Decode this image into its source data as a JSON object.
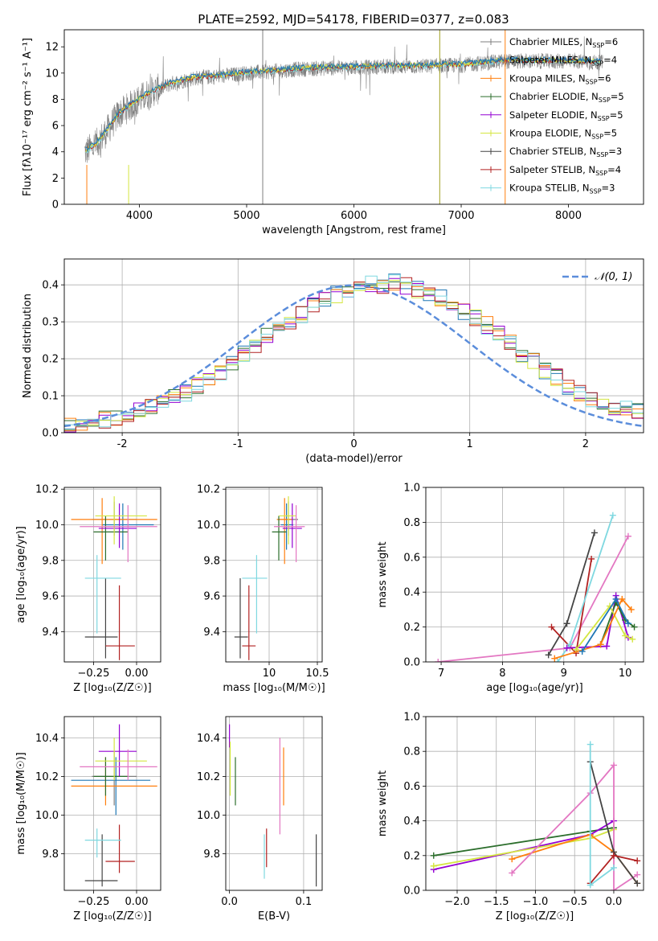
{
  "figure_title": "PLATE=2592, MJD=54178, FIBERID=0377, z=0.083",
  "colors": {
    "chabrier_miles": "#7f7f7f",
    "salpeter_miles": "#1f77b4",
    "kroupa_miles": "#ff7f0e",
    "chabrier_elodie": "#2c6e2c",
    "salpeter_elodie": "#9400d3",
    "kroupa_elodie": "#d4e640",
    "chabrier_stelib": "#444444",
    "salpeter_stelib": "#b22222",
    "kroupa_stelib": "#7fd8e0",
    "pink": "#e377c2"
  },
  "chart_data": [
    {
      "id": "spectrum",
      "type": "line",
      "title": "PLATE=2592, MJD=54178, FIBERID=0377, z=0.083",
      "xlabel": "wavelength [Angstrom, rest frame]",
      "ylabel": "Flux [fλ10⁻¹⁷ erg cm⁻² s⁻¹ A⁻¹]",
      "xlim": [
        3300,
        8700
      ],
      "ylim": [
        0,
        13.3
      ],
      "xticks": [
        4000,
        5000,
        6000,
        7000,
        8000
      ],
      "yticks": [
        0,
        2,
        4,
        6,
        8,
        10,
        12
      ],
      "legend_position": "right",
      "legend": [
        "Chabrier MILES, N_SSP=6",
        "Salpeter MILES, N_SSP=4",
        "Kroupa MILES, N_SSP=6",
        "Chabrier ELODIE, N_SSP=5",
        "Salpeter ELODIE, N_SSP=5",
        "Kroupa ELODIE, N_SSP=5",
        "Chabrier STELIB, N_SSP=3",
        "Salpeter STELIB, N_SSP=4",
        "Kroupa STELIB, N_SSP=3"
      ],
      "continuum": {
        "x": [
          3500,
          3600,
          3700,
          3800,
          3900,
          4000,
          4100,
          4300,
          4500,
          4800,
          5000,
          5200,
          5500,
          5800,
          6000,
          6300,
          6600,
          7000,
          7400,
          8000,
          8300
        ],
        "y": [
          4.0,
          4.6,
          5.6,
          6.8,
          7.4,
          8.0,
          8.5,
          9.2,
          9.6,
          9.8,
          10.0,
          10.1,
          10.3,
          10.4,
          10.4,
          10.5,
          10.5,
          10.6,
          10.9,
          10.9,
          10.8
        ]
      }
    },
    {
      "id": "residuals",
      "type": "histogram",
      "xlabel": "(data-model)/error",
      "ylabel": "Normed distribution",
      "xlim": [
        -2.5,
        2.5
      ],
      "ylim": [
        0,
        0.47
      ],
      "xticks": [
        -2,
        -1,
        0,
        1,
        2
      ],
      "yticks": [
        0.0,
        0.1,
        0.2,
        0.3,
        0.4
      ],
      "legend": [
        "𝒩(0, 1)"
      ],
      "bin_width": 0.1,
      "hist_values": [
        0.025,
        0.028,
        0.03,
        0.036,
        0.04,
        0.048,
        0.06,
        0.07,
        0.085,
        0.1,
        0.11,
        0.128,
        0.15,
        0.165,
        0.19,
        0.21,
        0.23,
        0.26,
        0.28,
        0.3,
        0.32,
        0.34,
        0.355,
        0.375,
        0.39,
        0.395,
        0.405,
        0.4,
        0.405,
        0.395,
        0.39,
        0.38,
        0.365,
        0.35,
        0.33,
        0.31,
        0.29,
        0.265,
        0.24,
        0.215,
        0.195,
        0.17,
        0.15,
        0.125,
        0.11,
        0.095,
        0.08,
        0.07,
        0.065,
        0.06
      ]
    },
    {
      "id": "age-z",
      "type": "errorbar",
      "xlabel": "Z [log₁₀(Z/Z☉)]",
      "ylabel": "age  [log₁₀(age/yr)]",
      "xlim": [
        -0.42,
        0.14
      ],
      "ylim": [
        9.23,
        10.21
      ],
      "xticks": [
        -0.25,
        0.0
      ],
      "xticklabels": [
        "−0.25",
        "0.00"
      ],
      "yticks": [
        9.4,
        9.6,
        9.8,
        10.0,
        10.2
      ],
      "points": [
        {
          "c": "chabrier_miles",
          "x": -0.13,
          "y": 10.03,
          "xl": -0.26,
          "xh": 0.0,
          "yl": 9.94,
          "yh": 10.13
        },
        {
          "c": "salpeter_miles",
          "x": -0.08,
          "y": 10.0,
          "xl": -0.2,
          "xh": 0.1,
          "yl": 9.86,
          "yh": 10.12
        },
        {
          "c": "kroupa_miles",
          "x": -0.2,
          "y": 10.03,
          "xl": -0.38,
          "xh": 0.12,
          "yl": 9.78,
          "yh": 10.15
        },
        {
          "c": "chabrier_elodie",
          "x": -0.18,
          "y": 9.96,
          "xl": -0.25,
          "xh": -0.05,
          "yl": 9.8,
          "yh": 10.05
        },
        {
          "c": "salpeter_elodie",
          "x": -0.1,
          "y": 9.98,
          "xl": -0.22,
          "xh": 0.0,
          "yl": 9.87,
          "yh": 10.12
        },
        {
          "c": "kroupa_elodie",
          "x": -0.13,
          "y": 10.05,
          "xl": -0.24,
          "xh": 0.06,
          "yl": 9.89,
          "yh": 10.16
        },
        {
          "c": "chabrier_stelib",
          "x": -0.18,
          "y": 9.37,
          "xl": -0.3,
          "xh": -0.11,
          "yl": 9.25,
          "yh": 9.7
        },
        {
          "c": "salpeter_stelib",
          "x": -0.1,
          "y": 9.32,
          "xl": -0.18,
          "xh": -0.01,
          "yl": 9.24,
          "yh": 9.66
        },
        {
          "c": "kroupa_stelib",
          "x": -0.23,
          "y": 9.7,
          "xl": -0.3,
          "xh": -0.09,
          "yl": 9.39,
          "yh": 9.83
        },
        {
          "c": "pink",
          "x": -0.05,
          "y": 9.99,
          "xl": -0.33,
          "xh": 0.12,
          "yl": 9.79,
          "yh": 10.11
        }
      ]
    },
    {
      "id": "age-mass",
      "type": "errorbar",
      "xlabel": "mass [log₁₀(M/M☉)]",
      "ylabel": "",
      "xlim": [
        9.55,
        10.55
      ],
      "ylim": [
        9.23,
        10.21
      ],
      "xticks": [
        10.0,
        10.5
      ],
      "yticks": [
        9.4,
        9.6,
        9.8,
        10.0,
        10.2
      ],
      "points": [
        {
          "c": "chabrier_miles",
          "x": 10.2,
          "y": 10.03,
          "xl": 10.1,
          "xh": 10.3,
          "yl": 9.94,
          "yh": 10.13
        },
        {
          "c": "salpeter_miles",
          "x": 10.18,
          "y": 10.0,
          "xl": 10.12,
          "xh": 10.25,
          "yl": 9.86,
          "yh": 10.12
        },
        {
          "c": "kroupa_miles",
          "x": 10.16,
          "y": 10.03,
          "xl": 10.08,
          "xh": 10.24,
          "yl": 9.78,
          "yh": 10.15
        },
        {
          "c": "chabrier_elodie",
          "x": 10.1,
          "y": 9.96,
          "xl": 10.03,
          "xh": 10.18,
          "yl": 9.8,
          "yh": 10.05
        },
        {
          "c": "salpeter_elodie",
          "x": 10.24,
          "y": 9.98,
          "xl": 10.14,
          "xh": 10.34,
          "yl": 9.87,
          "yh": 10.12
        },
        {
          "c": "kroupa_elodie",
          "x": 10.2,
          "y": 10.05,
          "xl": 10.1,
          "xh": 10.28,
          "yl": 9.89,
          "yh": 10.16
        },
        {
          "c": "chabrier_stelib",
          "x": 9.7,
          "y": 9.37,
          "xl": 9.64,
          "xh": 9.78,
          "yl": 9.25,
          "yh": 9.7
        },
        {
          "c": "salpeter_stelib",
          "x": 9.79,
          "y": 9.32,
          "xl": 9.72,
          "xh": 9.86,
          "yl": 9.24,
          "yh": 9.66
        },
        {
          "c": "kroupa_stelib",
          "x": 9.87,
          "y": 9.7,
          "xl": 9.72,
          "xh": 9.98,
          "yl": 9.39,
          "yh": 9.83
        },
        {
          "c": "pink",
          "x": 10.28,
          "y": 9.99,
          "xl": 10.05,
          "xh": 10.37,
          "yl": 9.79,
          "yh": 10.11
        }
      ]
    },
    {
      "id": "weight-age",
      "type": "line",
      "xlabel": "age  [log₁₀(age/yr)]",
      "ylabel": "mass weight",
      "xlim": [
        6.75,
        10.3
      ],
      "ylim": [
        0,
        1
      ],
      "xticks": [
        7,
        8,
        9,
        10
      ],
      "yticks": [
        0.0,
        0.2,
        0.4,
        0.6,
        0.8,
        1.0
      ],
      "series": [
        {
          "c": "pink",
          "x": [
            6.95,
            9.1,
            10.05
          ],
          "y": [
            0.0,
            0.08,
            0.72
          ]
        },
        {
          "c": "chabrier_stelib",
          "x": [
            8.75,
            9.05,
            9.5
          ],
          "y": [
            0.04,
            0.22,
            0.74
          ]
        },
        {
          "c": "salpeter_stelib",
          "x": [
            8.8,
            9.2,
            9.45
          ],
          "y": [
            0.2,
            0.05,
            0.59
          ]
        },
        {
          "c": "kroupa_stelib",
          "x": [
            8.9,
            9.1,
            9.8
          ],
          "y": [
            0.0,
            0.1,
            0.84
          ]
        },
        {
          "c": "salpeter_elodie",
          "x": [
            9.05,
            9.7,
            9.85,
            10.05
          ],
          "y": [
            0.08,
            0.09,
            0.38,
            0.14
          ]
        },
        {
          "c": "chabrier_elodie",
          "x": [
            9.6,
            9.85,
            10.0,
            10.15
          ],
          "y": [
            0.1,
            0.34,
            0.24,
            0.2
          ]
        },
        {
          "c": "kroupa_elodie",
          "x": [
            9.2,
            9.75,
            10.0,
            10.12
          ],
          "y": [
            0.07,
            0.32,
            0.15,
            0.13
          ]
        },
        {
          "c": "kroupa_miles",
          "x": [
            8.85,
            9.6,
            9.95,
            10.1
          ],
          "y": [
            0.02,
            0.1,
            0.36,
            0.3
          ]
        },
        {
          "c": "salpeter_miles",
          "x": [
            9.3,
            9.85,
            10.05
          ],
          "y": [
            0.06,
            0.36,
            0.22
          ]
        }
      ]
    },
    {
      "id": "mass-z",
      "type": "errorbar",
      "xlabel": "Z [log₁₀(Z/Z☉)]",
      "ylabel": "mass [log₁₀(M/M☉)]",
      "xlim": [
        -0.42,
        0.14
      ],
      "ylim": [
        9.61,
        10.51
      ],
      "xticks": [
        -0.25,
        0.0
      ],
      "xticklabels": [
        "−0.25",
        "0.00"
      ],
      "yticks": [
        9.8,
        10.0,
        10.2,
        10.4
      ],
      "points": [
        {
          "c": "chabrier_miles",
          "x": -0.13,
          "y": 10.2,
          "xl": -0.26,
          "xh": 0.0,
          "yl": 10.05,
          "yh": 10.33
        },
        {
          "c": "salpeter_miles",
          "x": -0.12,
          "y": 10.18,
          "xl": -0.38,
          "xh": 0.08,
          "yl": 10.0,
          "yh": 10.3
        },
        {
          "c": "kroupa_miles",
          "x": -0.18,
          "y": 10.15,
          "xl": -0.38,
          "xh": 0.12,
          "yl": 10.05,
          "yh": 10.3
        },
        {
          "c": "chabrier_elodie",
          "x": -0.18,
          "y": 10.2,
          "xl": -0.25,
          "xh": -0.05,
          "yl": 10.1,
          "yh": 10.3
        },
        {
          "c": "salpeter_elodie",
          "x": -0.1,
          "y": 10.33,
          "xl": -0.22,
          "xh": 0.0,
          "yl": 10.2,
          "yh": 10.47
        },
        {
          "c": "kroupa_elodie",
          "x": -0.13,
          "y": 10.28,
          "xl": -0.24,
          "xh": 0.06,
          "yl": 10.18,
          "yh": 10.4
        },
        {
          "c": "chabrier_stelib",
          "x": -0.2,
          "y": 9.66,
          "xl": -0.3,
          "xh": -0.11,
          "yl": 9.63,
          "yh": 9.9
        },
        {
          "c": "salpeter_stelib",
          "x": -0.1,
          "y": 9.76,
          "xl": -0.18,
          "xh": -0.01,
          "yl": 9.7,
          "yh": 9.95
        },
        {
          "c": "kroupa_stelib",
          "x": -0.23,
          "y": 9.87,
          "xl": -0.3,
          "xh": -0.09,
          "yl": 9.78,
          "yh": 9.93
        },
        {
          "c": "pink",
          "x": -0.05,
          "y": 10.25,
          "xl": -0.33,
          "xh": 0.12,
          "yl": 10.18,
          "yh": 10.34
        }
      ]
    },
    {
      "id": "mass-ebv",
      "type": "errorbar",
      "xlabel": "E(B-V)",
      "ylabel": "",
      "xlim": [
        -0.005,
        0.125
      ],
      "ylim": [
        9.61,
        10.51
      ],
      "xticks": [
        0.0,
        0.1
      ],
      "xticklabels": [
        "0.0",
        "0.1"
      ],
      "yticks": [
        9.8,
        10.0,
        10.2,
        10.4
      ],
      "points": [
        {
          "c": "salpeter_elodie",
          "x": 0.0,
          "y": 10.4,
          "yl": 10.35,
          "yh": 10.47
        },
        {
          "c": "kroupa_elodie",
          "x": 0.001,
          "y": 10.2,
          "yl": 10.1,
          "yh": 10.38
        },
        {
          "c": "chabrier_elodie",
          "x": 0.008,
          "y": 10.2,
          "yl": 10.05,
          "yh": 10.3
        },
        {
          "c": "kroupa_stelib",
          "x": 0.047,
          "y": 9.8,
          "yl": 9.67,
          "yh": 9.9
        },
        {
          "c": "salpeter_stelib",
          "x": 0.05,
          "y": 9.82,
          "yl": 9.73,
          "yh": 9.93
        },
        {
          "c": "pink",
          "x": 0.068,
          "y": 10.15,
          "yl": 9.9,
          "yh": 10.4
        },
        {
          "c": "kroupa_miles",
          "x": 0.073,
          "y": 10.25,
          "yl": 10.05,
          "yh": 10.35
        },
        {
          "c": "chabrier_stelib",
          "x": 0.117,
          "y": 9.75,
          "yl": 9.63,
          "yh": 9.9
        }
      ]
    },
    {
      "id": "weight-z",
      "type": "line",
      "xlabel": "Z [log₁₀(Z/Z☉)]",
      "ylabel": "mass weight",
      "xlim": [
        -2.4,
        0.38
      ],
      "ylim": [
        0,
        1
      ],
      "xticks": [
        -2.0,
        -1.5,
        -1.0,
        -0.5,
        0.0
      ],
      "xticklabels": [
        "−2.0",
        "−1.5",
        "−1.0",
        "−0.5",
        "0.0"
      ],
      "yticks": [
        0.0,
        0.2,
        0.4,
        0.6,
        0.8,
        1.0
      ],
      "series": [
        {
          "c": "chabrier_elodie",
          "x": [
            -2.3,
            -0.3,
            0.0
          ],
          "y": [
            0.2,
            0.34,
            0.36
          ]
        },
        {
          "c": "salpeter_elodie",
          "x": [
            -2.3,
            -0.3,
            0.0
          ],
          "y": [
            0.12,
            0.32,
            0.4
          ]
        },
        {
          "c": "kroupa_elodie",
          "x": [
            -2.3,
            -0.3,
            0.0
          ],
          "y": [
            0.14,
            0.3,
            0.35
          ]
        },
        {
          "c": "kroupa_miles",
          "x": [
            -1.3,
            -0.3,
            0.0,
            0.3
          ],
          "y": [
            0.18,
            0.32,
            0.22,
            0.04
          ]
        },
        {
          "c": "pink",
          "x": [
            -1.3,
            -0.3,
            0.0,
            0.0,
            0.3
          ],
          "y": [
            0.1,
            0.56,
            0.72,
            0.0,
            0.09
          ]
        },
        {
          "c": "chabrier_stelib",
          "x": [
            -0.3,
            0.0,
            0.3
          ],
          "y": [
            0.74,
            0.22,
            0.04
          ]
        },
        {
          "c": "salpeter_stelib",
          "x": [
            -0.3,
            0.0,
            0.3
          ],
          "y": [
            0.04,
            0.2,
            0.17
          ]
        },
        {
          "c": "kroupa_stelib",
          "x": [
            -0.3,
            -0.3,
            0.0
          ],
          "y": [
            0.84,
            0.03,
            0.13
          ]
        }
      ]
    }
  ]
}
